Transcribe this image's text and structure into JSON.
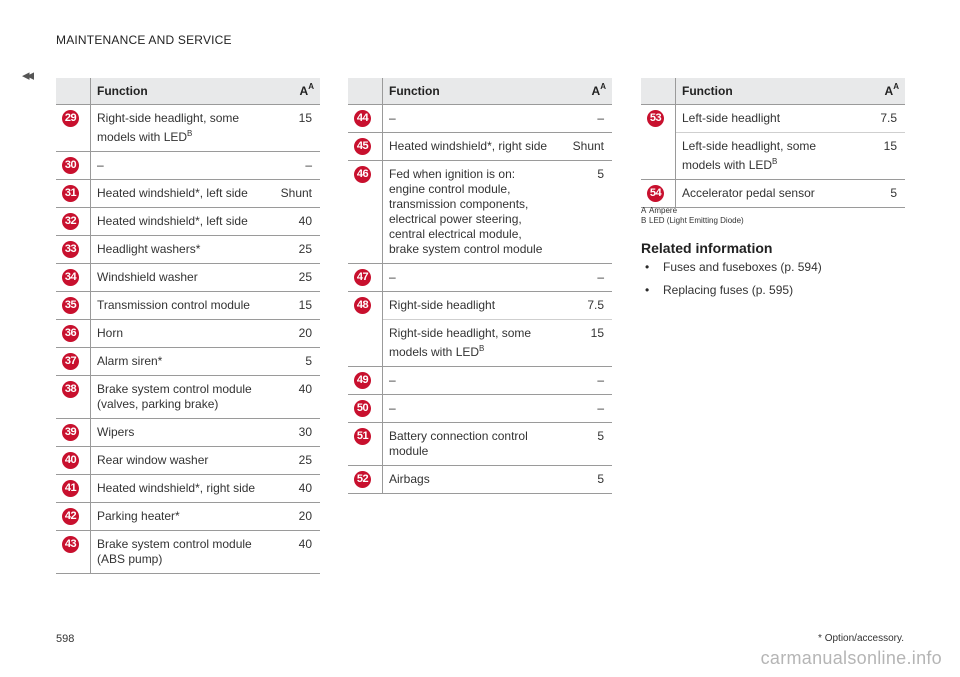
{
  "header": {
    "section_title": "MAINTENANCE AND SERVICE",
    "prev_icon": "◂◂"
  },
  "table_headers": {
    "function": "Function",
    "amp": "A",
    "amp_sup": "A"
  },
  "columns": [
    {
      "rows": [
        {
          "num": "29",
          "entries": [
            {
              "function": "Right-side headlight, some models with LED",
              "sup": "B",
              "amp": "15"
            }
          ]
        },
        {
          "num": "30",
          "entries": [
            {
              "function": "–",
              "sup": "",
              "amp": "–"
            }
          ]
        },
        {
          "num": "31",
          "entries": [
            {
              "function": "Heated windshield*, left side",
              "sup": "",
              "amp": "Shunt"
            }
          ]
        },
        {
          "num": "32",
          "entries": [
            {
              "function": "Heated windshield*, left side",
              "sup": "",
              "amp": "40"
            }
          ]
        },
        {
          "num": "33",
          "entries": [
            {
              "function": "Headlight washers*",
              "sup": "",
              "amp": "25"
            }
          ]
        },
        {
          "num": "34",
          "entries": [
            {
              "function": "Windshield washer",
              "sup": "",
              "amp": "25"
            }
          ]
        },
        {
          "num": "35",
          "entries": [
            {
              "function": "Transmission control module",
              "sup": "",
              "amp": "15"
            }
          ]
        },
        {
          "num": "36",
          "entries": [
            {
              "function": "Horn",
              "sup": "",
              "amp": "20"
            }
          ]
        },
        {
          "num": "37",
          "entries": [
            {
              "function": "Alarm siren*",
              "sup": "",
              "amp": "5"
            }
          ]
        },
        {
          "num": "38",
          "entries": [
            {
              "function": "Brake system control module (valves, parking brake)",
              "sup": "",
              "amp": "40"
            }
          ]
        },
        {
          "num": "39",
          "entries": [
            {
              "function": "Wipers",
              "sup": "",
              "amp": "30"
            }
          ]
        },
        {
          "num": "40",
          "entries": [
            {
              "function": "Rear window washer",
              "sup": "",
              "amp": "25"
            }
          ]
        },
        {
          "num": "41",
          "entries": [
            {
              "function": "Heated windshield*, right side",
              "sup": "",
              "amp": "40"
            }
          ]
        },
        {
          "num": "42",
          "entries": [
            {
              "function": "Parking heater*",
              "sup": "",
              "amp": "20"
            }
          ]
        },
        {
          "num": "43",
          "entries": [
            {
              "function": "Brake system control module (ABS pump)",
              "sup": "",
              "amp": "40"
            }
          ]
        }
      ]
    },
    {
      "rows": [
        {
          "num": "44",
          "entries": [
            {
              "function": "–",
              "sup": "",
              "amp": "–"
            }
          ]
        },
        {
          "num": "45",
          "entries": [
            {
              "function": "Heated windshield*, right side",
              "sup": "",
              "amp": "Shunt"
            }
          ]
        },
        {
          "num": "46",
          "entries": [
            {
              "function": "Fed when ignition is on: engine control module, transmission components, electrical power steering, central electrical module, brake system control module",
              "sup": "",
              "amp": "5"
            }
          ]
        },
        {
          "num": "47",
          "entries": [
            {
              "function": "–",
              "sup": "",
              "amp": "–"
            }
          ]
        },
        {
          "num": "48",
          "entries": [
            {
              "function": "Right-side headlight",
              "sup": "",
              "amp": "7.5"
            },
            {
              "function": "Right-side headlight, some models with LED",
              "sup": "B",
              "amp": "15"
            }
          ]
        },
        {
          "num": "49",
          "entries": [
            {
              "function": "–",
              "sup": "",
              "amp": "–"
            }
          ]
        },
        {
          "num": "50",
          "entries": [
            {
              "function": "–",
              "sup": "",
              "amp": "–"
            }
          ]
        },
        {
          "num": "51",
          "entries": [
            {
              "function": "Battery connection control module",
              "sup": "",
              "amp": "5"
            }
          ]
        },
        {
          "num": "52",
          "entries": [
            {
              "function": "Airbags",
              "sup": "",
              "amp": "5"
            }
          ]
        }
      ]
    },
    {
      "rows": [
        {
          "num": "53",
          "entries": [
            {
              "function": "Left-side headlight",
              "sup": "",
              "amp": "7.5"
            },
            {
              "function": "Left-side headlight, some models with LED",
              "sup": "B",
              "amp": "15"
            }
          ]
        },
        {
          "num": "54",
          "entries": [
            {
              "function": "Accelerator pedal sensor",
              "sup": "",
              "amp": "5"
            }
          ]
        }
      ]
    }
  ],
  "footnotes": [
    {
      "mark": "A",
      "text": "Ampere"
    },
    {
      "mark": "B",
      "text": "LED (Light Emitting Diode)"
    }
  ],
  "related": {
    "heading": "Related information",
    "bullet": "•",
    "links": [
      "Fuses and fuseboxes (p. 594)",
      "Replacing fuses (p. 595)"
    ]
  },
  "page_number": "598",
  "footer_note": "* Option/accessory.",
  "watermark": "carmanualsonline.info",
  "colors": {
    "badge": "#c8102e",
    "header_bg": "#e8e9ea",
    "rule": "#9a9a9a"
  }
}
